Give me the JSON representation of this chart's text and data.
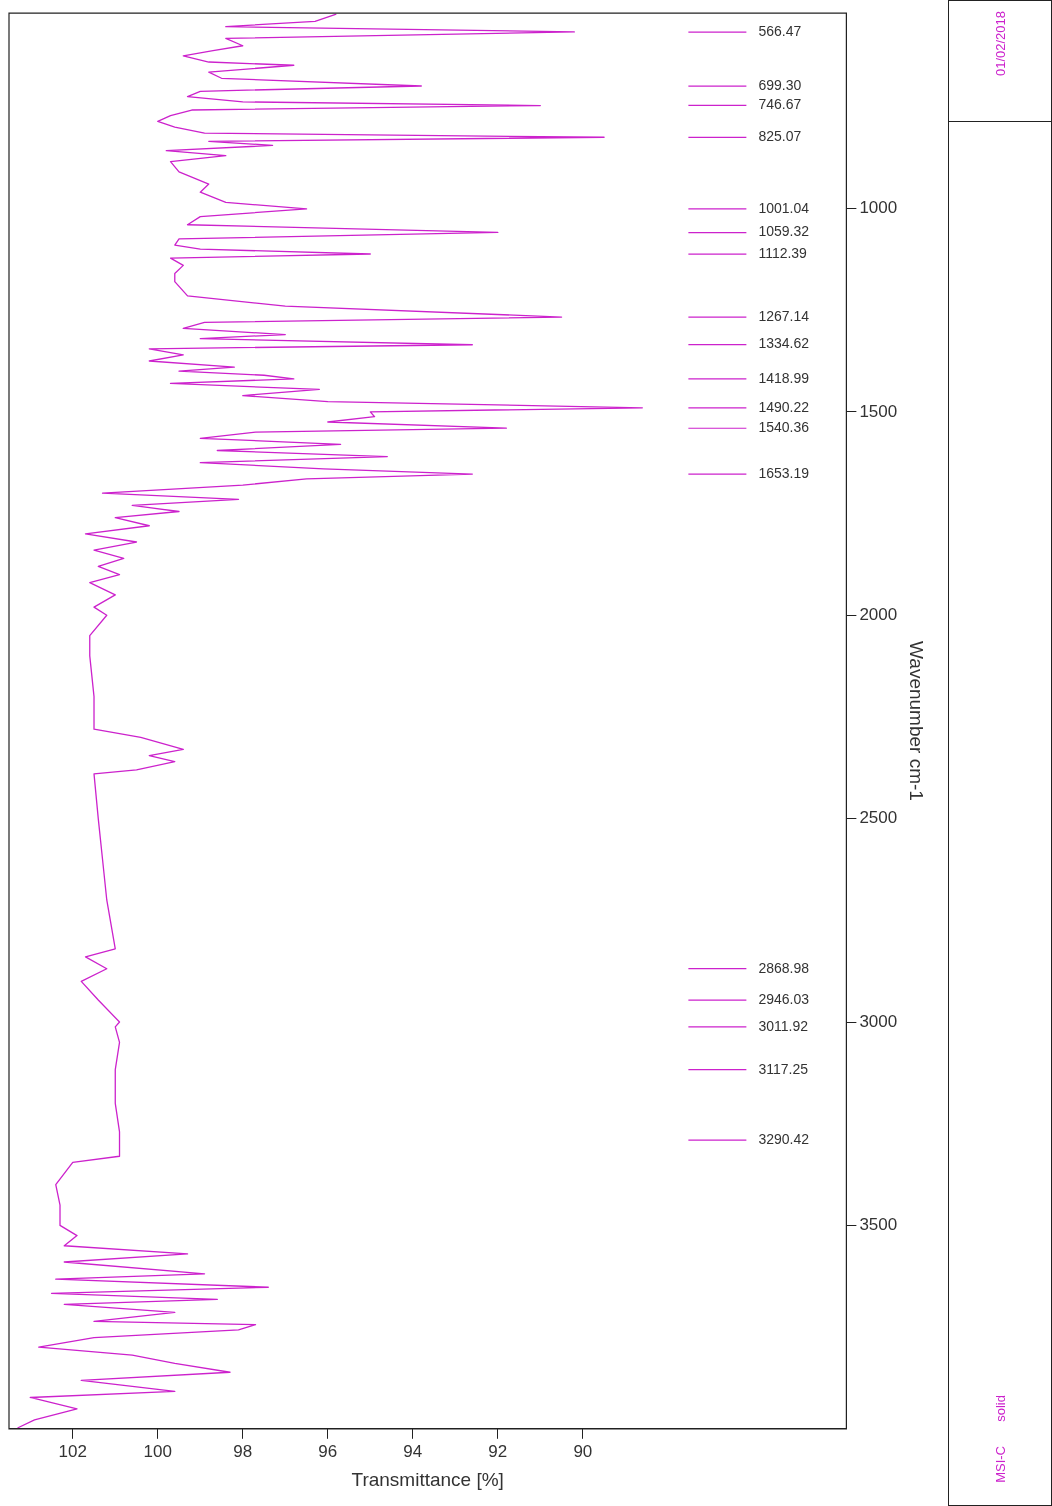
{
  "chart_data": {
    "type": "line",
    "xlabel": "Transmittance [%]",
    "ylabel": "Wavenumber cm-1",
    "xlim": [
      103.5,
      83.8
    ],
    "xticks": [
      102,
      100,
      98,
      96,
      94,
      92,
      90
    ],
    "ylim": [
      4000,
      520
    ],
    "yticks": [
      1000,
      1500,
      2000,
      2500,
      3000,
      3500
    ],
    "grid": false,
    "legend": false,
    "marker": "none",
    "line_style": "solid",
    "annotations": [
      "01/02/2018",
      "MSI-C",
      "solid",
      "566.47",
      "699.30",
      "746.67",
      "825.07",
      "1001.04",
      "1059.32",
      "1112.39",
      "1267.14",
      "1334.62",
      "1418.99",
      "1490.22",
      "1540.36",
      "1653.19",
      "2868.98",
      "2946.03",
      "3011.92",
      "3117.25",
      "3290.42"
    ],
    "series": [
      {
        "color": "#cc22cc",
        "values": [
          522,
          540,
          553,
          566,
          582,
          600,
          612,
          625,
          640,
          648,
          665,
          680,
          699,
          712,
          725,
          738,
          747,
          758,
          772,
          786,
          800,
          815,
          825,
          835,
          845,
          858,
          870,
          885,
          910,
          940,
          960,
          985,
          1001,
          1020,
          1040,
          1059,
          1075,
          1090,
          1100,
          1112,
          1122,
          1140,
          1160,
          1180,
          1215,
          1240,
          1267,
          1280,
          1295,
          1310,
          1320,
          1335,
          1345,
          1360,
          1375,
          1390,
          1400,
          1410,
          1419,
          1430,
          1445,
          1460,
          1475,
          1490,
          1500,
          1512,
          1525,
          1540,
          1550,
          1565,
          1580,
          1595,
          1610,
          1625,
          1640,
          1653,
          1665,
          1680,
          1700,
          1715,
          1730,
          1745,
          1760,
          1780,
          1800,
          1820,
          1840,
          1860,
          1880,
          1900,
          1920,
          1950,
          1980,
          2000,
          2050,
          2100,
          2200,
          2280,
          2300,
          2330,
          2345,
          2360,
          2380,
          2390,
          2500,
          2600,
          2700,
          2820,
          2840,
          2869,
          2900,
          2946,
          3000,
          3012,
          3050,
          3117,
          3200,
          3270,
          3330,
          3345,
          3400,
          3450,
          3500,
          3525,
          3550,
          3570,
          3590,
          3619,
          3632,
          3652,
          3667,
          3682,
          3694,
          3714,
          3736,
          3744,
          3757,
          3776,
          3799,
          3819,
          3839,
          3861,
          3881,
          3908,
          3923,
          3951,
          3978,
          3998
        ],
        "x": [
          95.8,
          96.3,
          98.4,
          90.2,
          98.4,
          98.0,
          98.7,
          99.4,
          98.8,
          96.8,
          98.8,
          98.5,
          93.8,
          99.0,
          99.3,
          98.0,
          91.0,
          99.2,
          99.7,
          100.0,
          99.6,
          98.9,
          89.5,
          98.8,
          97.3,
          99.8,
          98.4,
          99.7,
          99.5,
          98.8,
          99.0,
          98.4,
          96.5,
          99.0,
          99.3,
          92.0,
          99.5,
          99.6,
          99.0,
          95.0,
          99.7,
          99.4,
          99.6,
          99.6,
          99.3,
          97.0,
          90.5,
          98.9,
          99.4,
          97.0,
          99.0,
          92.6,
          100.2,
          99.4,
          100.2,
          98.2,
          99.5,
          97.5,
          96.8,
          99.7,
          96.2,
          98.0,
          96.0,
          88.6,
          95.0,
          94.9,
          96.0,
          91.8,
          97.7,
          99.0,
          95.7,
          98.6,
          94.6,
          99.0,
          96.1,
          92.6,
          96.5,
          98.0,
          101.3,
          98.1,
          100.6,
          99.5,
          101.0,
          100.2,
          101.7,
          100.5,
          101.5,
          100.8,
          101.4,
          100.9,
          101.6,
          101.0,
          101.5,
          101.2,
          101.6,
          101.6,
          101.5,
          101.5,
          100.4,
          99.4,
          100.2,
          99.6,
          100.5,
          101.5,
          101.4,
          101.3,
          101.2,
          101.0,
          101.7,
          101.2,
          101.8,
          101.4,
          100.9,
          101.0,
          100.9,
          101.0,
          101.0,
          100.9,
          100.9,
          102.0,
          102.4,
          102.3,
          102.3,
          101.9,
          102.2,
          99.3,
          102.2,
          98.9,
          102.4,
          97.4,
          102.5,
          98.6,
          102.2,
          99.6,
          101.5,
          97.7,
          98.1,
          101.5,
          102.8,
          100.6,
          99.6,
          98.3,
          101.8,
          99.6,
          103.0,
          101.9,
          102.9,
          103.3
        ]
      }
    ]
  }
}
